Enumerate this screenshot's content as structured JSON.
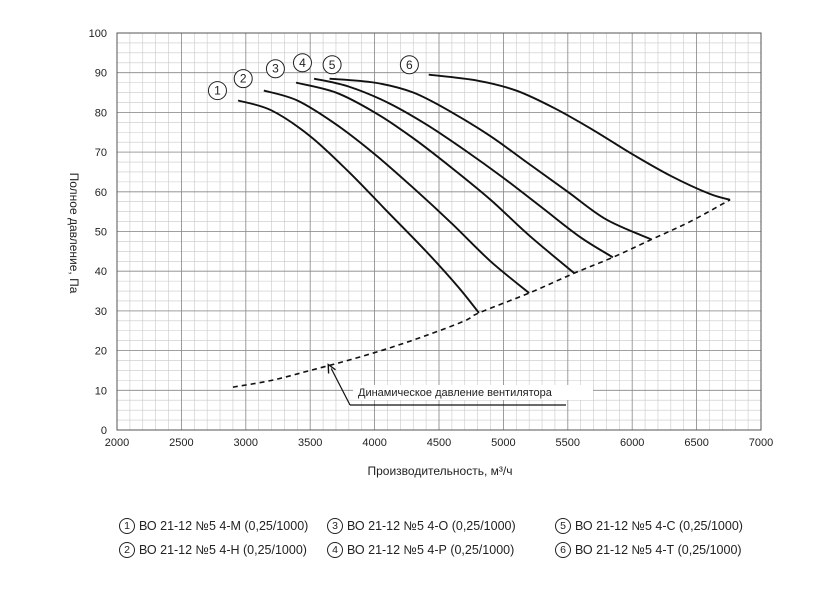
{
  "chart_data": {
    "type": "line",
    "xlabel": "Производительность, м³/ч",
    "ylabel": "Полное давление, Па",
    "xlim": [
      2000,
      7000
    ],
    "ylim": [
      0,
      100
    ],
    "xticks": [
      2000,
      2500,
      3000,
      3500,
      4000,
      4500,
      5000,
      5500,
      6000,
      6500,
      7000
    ],
    "yticks": [
      0,
      10,
      20,
      30,
      40,
      50,
      60,
      70,
      80,
      90,
      100
    ],
    "grid": true,
    "series": [
      {
        "id": "1",
        "name": "ВО 21-12 №5 4-М (0,25/1000)",
        "style": "solid",
        "points": [
          [
            2940,
            83
          ],
          [
            3200,
            80.5
          ],
          [
            3500,
            74
          ],
          [
            3800,
            65
          ],
          [
            4100,
            55
          ],
          [
            4400,
            45
          ],
          [
            4650,
            36
          ],
          [
            4810,
            29.5
          ]
        ]
      },
      {
        "id": "2",
        "name": "ВО 21-12 №5 4-Н (0,25/1000)",
        "style": "solid",
        "points": [
          [
            3140,
            85.5
          ],
          [
            3400,
            83
          ],
          [
            3700,
            77
          ],
          [
            4000,
            69.5
          ],
          [
            4300,
            61
          ],
          [
            4600,
            52
          ],
          [
            4900,
            42.5
          ],
          [
            5200,
            34.5
          ]
        ]
      },
      {
        "id": "3",
        "name": "ВО 21-12 №5 4-О (0,25/1000)",
        "style": "solid",
        "points": [
          [
            3390,
            87.5
          ],
          [
            3700,
            85
          ],
          [
            4000,
            80
          ],
          [
            4300,
            73.5
          ],
          [
            4600,
            66
          ],
          [
            4900,
            58
          ],
          [
            5200,
            49
          ],
          [
            5550,
            39.5
          ]
        ]
      },
      {
        "id": "4",
        "name": "ВО 21-12 №5 4-Р (0,25/1000)",
        "style": "solid",
        "points": [
          [
            3530,
            88.5
          ],
          [
            3800,
            86.5
          ],
          [
            4100,
            82.5
          ],
          [
            4400,
            77
          ],
          [
            4700,
            70.5
          ],
          [
            5000,
            63.5
          ],
          [
            5300,
            56
          ],
          [
            5600,
            48.5
          ],
          [
            5850,
            43.5
          ]
        ]
      },
      {
        "id": "5",
        "name": "ВО 21-12 №5 4-С (0,25/1000)",
        "style": "solid",
        "points": [
          [
            3650,
            88.5
          ],
          [
            4000,
            87.5
          ],
          [
            4300,
            85
          ],
          [
            4600,
            80
          ],
          [
            4900,
            74
          ],
          [
            5200,
            67
          ],
          [
            5500,
            60
          ],
          [
            5800,
            53
          ],
          [
            6150,
            48
          ]
        ]
      },
      {
        "id": "6",
        "name": "ВО 21-12 №5 4-Т (0,25/1000)",
        "style": "solid",
        "points": [
          [
            4420,
            89.5
          ],
          [
            4800,
            88
          ],
          [
            5100,
            85.5
          ],
          [
            5400,
            81
          ],
          [
            5700,
            75.5
          ],
          [
            6000,
            69.5
          ],
          [
            6300,
            64
          ],
          [
            6600,
            59.5
          ],
          [
            6760,
            58
          ]
        ]
      }
    ],
    "dynamic_pressure": {
      "name": "Динамическое давление вентилятора",
      "style": "dashed",
      "points": [
        [
          2900,
          10.8
        ],
        [
          3200,
          12.5
        ],
        [
          3500,
          15
        ],
        [
          3800,
          17.6
        ],
        [
          4100,
          20.5
        ],
        [
          4400,
          23.8
        ],
        [
          4700,
          27.5
        ],
        [
          4810,
          29.5
        ],
        [
          5200,
          34.5
        ],
        [
          5550,
          39.5
        ],
        [
          5850,
          43.5
        ],
        [
          6150,
          48
        ],
        [
          6450,
          52.5
        ],
        [
          6760,
          58
        ]
      ]
    },
    "annotation": {
      "text": "Динамическое давление вентилятора",
      "arrow_target": [
        3640,
        16.5
      ]
    },
    "curve_labels": [
      {
        "id": "1",
        "at": [
          2780,
          85.5
        ]
      },
      {
        "id": "2",
        "at": [
          2980,
          88.5
        ]
      },
      {
        "id": "3",
        "at": [
          3230,
          91
        ]
      },
      {
        "id": "4",
        "at": [
          3440,
          92.5
        ]
      },
      {
        "id": "5",
        "at": [
          3670,
          92
        ]
      },
      {
        "id": "6",
        "at": [
          4270,
          92
        ]
      }
    ]
  }
}
